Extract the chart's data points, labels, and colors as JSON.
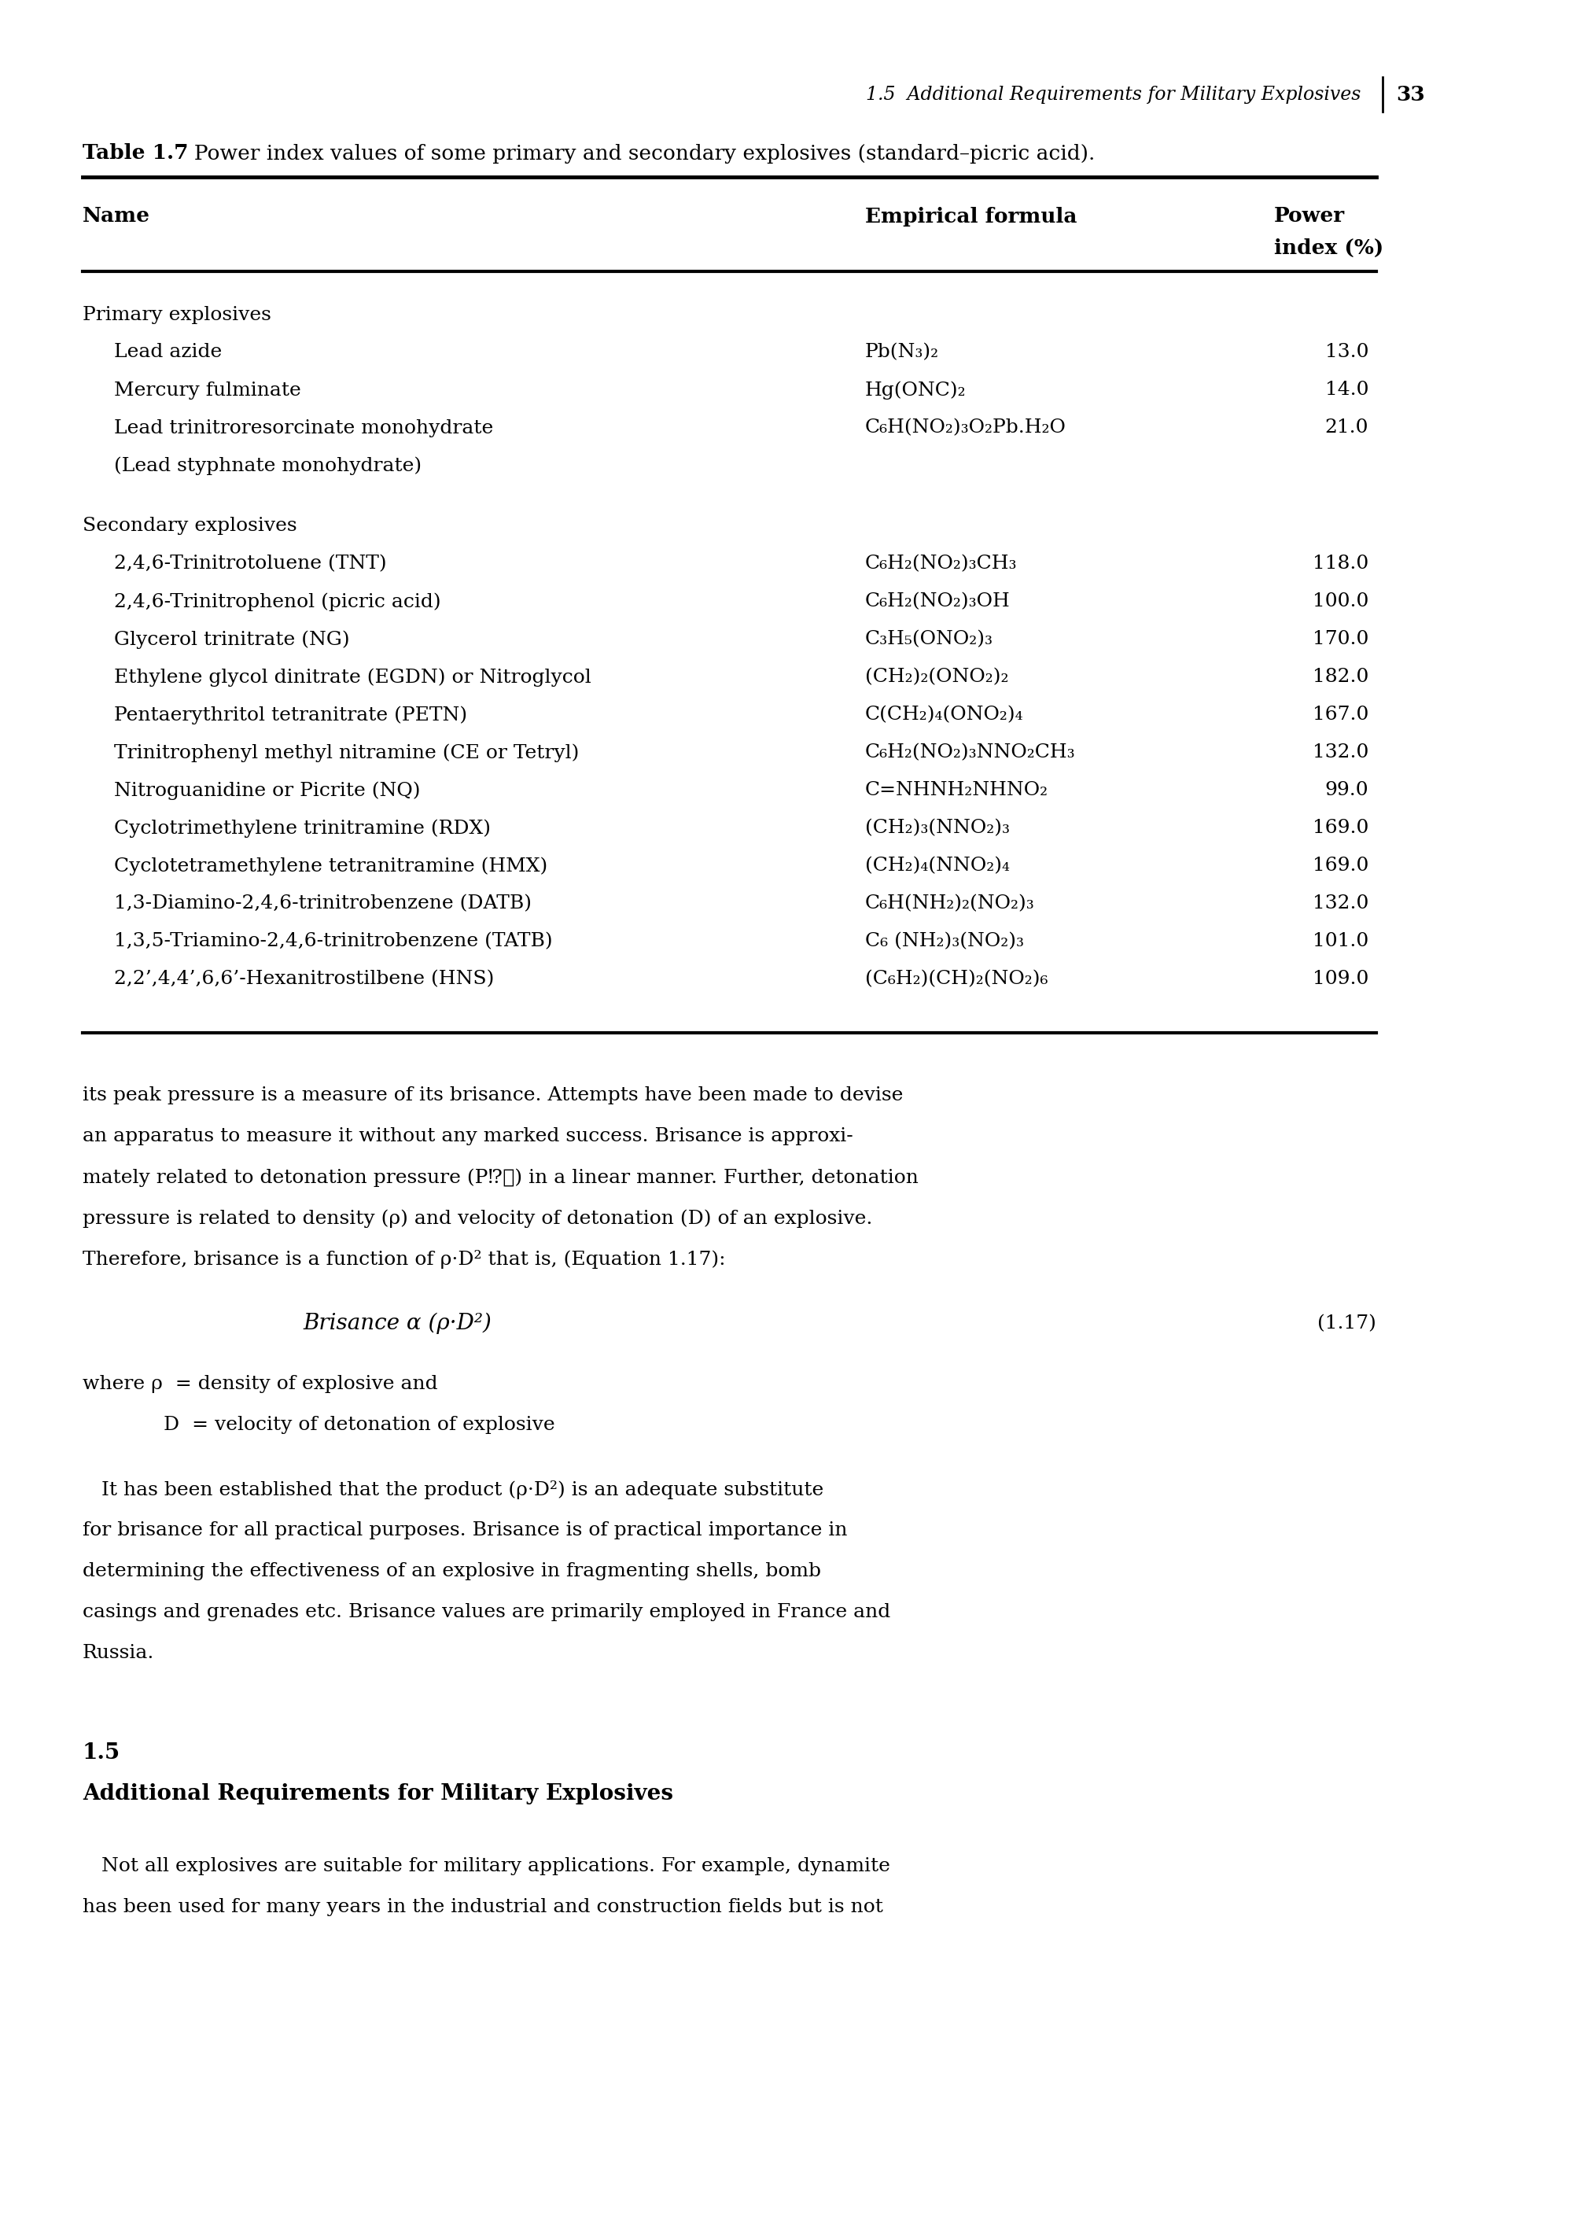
{
  "page_header_italic": "1.5  Additional Requirements for Military Explosives",
  "page_number": "33",
  "table_title_bold": "Table 1.7",
  "table_title_normal": "  Power index values of some primary and secondary explosives (standard–picric acid).",
  "primary_label": "Primary explosives",
  "primary_rows": [
    [
      "Lead azide",
      "Pb(N₃)₂",
      "13.0"
    ],
    [
      "Mercury fulminate",
      "Hg(ONC)₂",
      "14.0"
    ],
    [
      "Lead trinitroresorcinate monohydrate",
      "C₆H(NO₂)₃O₂Pb.H₂O",
      "21.0"
    ],
    [
      "(Lead styphnate monohydrate)",
      "",
      ""
    ]
  ],
  "secondary_label": "Secondary explosives",
  "secondary_rows": [
    [
      "2,4,6-Trinitrotoluene (TNT)",
      "C₆H₂(NO₂)₃CH₃",
      "118.0"
    ],
    [
      "2,4,6-Trinitrophenol (picric acid)",
      "C₆H₂(NO₂)₃OH",
      "100.0"
    ],
    [
      "Glycerol trinitrate (NG)",
      "C₃H₅(ONO₂)₃",
      "170.0"
    ],
    [
      "Ethylene glycol dinitrate (EGDN) or Nitroglycol",
      "(CH₂)₂(ONO₂)₂",
      "182.0"
    ],
    [
      "Pentaerythritol tetranitrate (PETN)",
      "C(CH₂)₄(ONO₂)₄",
      "167.0"
    ],
    [
      "Trinitrophenyl methyl nitramine (CE or Tetryl)",
      "C₆H₂(NO₂)₃NNO₂CH₃",
      "132.0"
    ],
    [
      "Nitroguanidine or Picrite (NQ)",
      "C=NHNH₂NHNO₂",
      "99.0"
    ],
    [
      "Cyclotrimethylene trinitramine (RDX)",
      "(CH₂)₃(NNO₂)₃",
      "169.0"
    ],
    [
      "Cyclotetramethylene tetranitramine (HMX)",
      "(CH₂)₄(NNO₂)₄",
      "169.0"
    ],
    [
      "1,3-Diamino-2,4,6-trinitrobenzene (DATB)",
      "C₆H(NH₂)₂(NO₂)₃",
      "132.0"
    ],
    [
      "1,3,5-Triamino-2,4,6-trinitrobenzene (TATB)",
      "C₆ (NH₂)₃(NO₂)₃",
      "101.0"
    ],
    [
      "2,2’,4,4’,6,6’-Hexanitrostilbene (HNS)",
      "(C₆H₂)(CH)₂(NO₂)₆",
      "109.0"
    ]
  ],
  "body_text": [
    "its peak pressure is a measure of its brisance. Attempts have been made to devise",
    "an apparatus to measure it without any marked success. Brisance is approxi-",
    "mately related to detonation pressure (P⁉⁃) in a linear manner. Further, detonation",
    "pressure is related to density (ρ) and velocity of detonation (D) of an explosive.",
    "Therefore, brisance is a function of ρ·D² that is, (Equation 1.17):"
  ],
  "equation": "Brisance α (ρ·D²)",
  "equation_number": "(1.17)",
  "where_lines": [
    "where ρ  = density of explosive and",
    "      D  = velocity of detonation of explosive"
  ],
  "body_text2": [
    "   It has been established that the product (ρ·D²) is an adequate substitute",
    "for brisance for all practical purposes. Brisance is of practical importance in",
    "determining the effectiveness of an explosive in fragmenting shells, bomb",
    "casings and grenades etc. Brisance values are primarily employed in France and",
    "Russia."
  ],
  "section_number": "1.5",
  "section_title": "Additional Requirements for Military Explosives",
  "final_para": [
    "   Not all explosives are suitable for military applications. For example, dynamite",
    "has been used for many years in the industrial and construction fields but is not"
  ],
  "bg_color": "#ffffff",
  "text_color": "#000000"
}
